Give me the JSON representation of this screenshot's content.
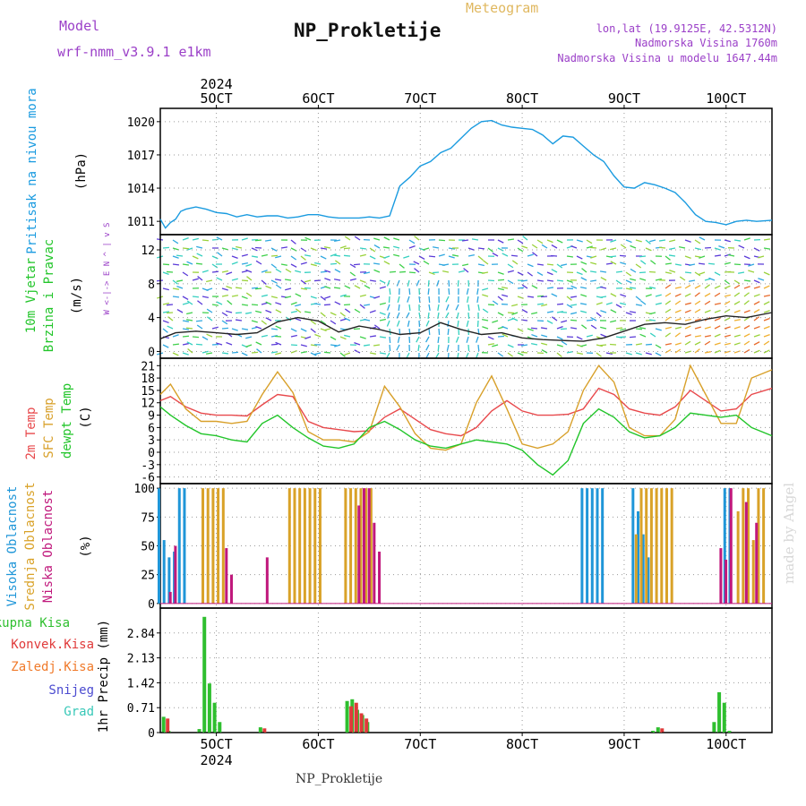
{
  "header": {
    "model_label": "Model",
    "model_name": "wrf-nmm_v3.9.1 e1km",
    "title": "NP_Prokletije",
    "product": "Meteogram",
    "lonlat": "lon,lat (19.9125E, 42.5312N)",
    "elevation": "Nadmorska Visina 1760m",
    "model_elevation": "Nadmorska Visina u modelu 1647.44m",
    "bottom_title": "NP_Prokletije",
    "watermark": "made by Angel"
  },
  "colors": {
    "pressure": "#1a9be0",
    "temp2m": "#e8494c",
    "sfc_temp": "#d8a02a",
    "dewpt": "#22c52a",
    "high_cloud": "#1f96d8",
    "mid_cloud": "#d9a228",
    "low_cloud": "#c0187c",
    "precip_total": "#2fbf2f",
    "precip_conv": "#e03a3a",
    "precip_frozen": "#f07a2a",
    "snow": "#4b4bd0",
    "hail": "#38c8b8",
    "model_text": "#9b40c8",
    "grid": "#9a9a9a"
  },
  "chart_data": {
    "time_axis": {
      "top_ticks": [
        "5OCT",
        "6OCT",
        "7OCT",
        "8OCT",
        "9OCT",
        "10OCT"
      ],
      "top_year": "2024",
      "bottom_ticks": [
        "5OCT",
        "6OCT",
        "7OCT",
        "8OCT",
        "9OCT",
        "10OCT"
      ],
      "bottom_year": "2024",
      "range_days": [
        4.45,
        10.45
      ]
    },
    "panels": [
      {
        "id": "pressure",
        "type": "line",
        "labels": [
          "Pritisak na nivou mora"
        ],
        "unit": "(hPa)",
        "yticks": [
          "1011",
          "1014",
          "1017",
          "1020"
        ],
        "ylim": [
          1009.8,
          1021.2
        ],
        "series": [
          {
            "name": "Pritisak na nivou mora",
            "x": [
              4.45,
              4.5,
              4.55,
              4.6,
              4.65,
              4.7,
              4.8,
              4.9,
              5.0,
              5.1,
              5.2,
              5.3,
              5.4,
              5.5,
              5.6,
              5.7,
              5.8,
              5.9,
              6.0,
              6.1,
              6.2,
              6.3,
              6.4,
              6.5,
              6.6,
              6.7,
              6.8,
              6.9,
              7.0,
              7.1,
              7.2,
              7.3,
              7.4,
              7.5,
              7.6,
              7.7,
              7.8,
              7.9,
              8.0,
              8.1,
              8.2,
              8.3,
              8.4,
              8.5,
              8.6,
              8.7,
              8.8,
              8.9,
              9.0,
              9.1,
              9.2,
              9.3,
              9.4,
              9.5,
              9.6,
              9.7,
              9.8,
              9.9,
              10.0,
              10.1,
              10.2,
              10.3,
              10.45
            ],
            "values": [
              1011.2,
              1010.4,
              1010.9,
              1011.2,
              1011.9,
              1012.1,
              1012.3,
              1012.1,
              1011.8,
              1011.7,
              1011.4,
              1011.6,
              1011.4,
              1011.5,
              1011.5,
              1011.3,
              1011.4,
              1011.6,
              1011.6,
              1011.4,
              1011.3,
              1011.3,
              1011.3,
              1011.4,
              1011.3,
              1011.5,
              1014.2,
              1015.0,
              1016.0,
              1016.4,
              1017.2,
              1017.6,
              1018.5,
              1019.4,
              1020.0,
              1020.1,
              1019.7,
              1019.5,
              1019.4,
              1019.3,
              1018.8,
              1018.0,
              1018.7,
              1018.6,
              1017.8,
              1017.0,
              1016.4,
              1015.1,
              1014.1,
              1014.0,
              1014.5,
              1014.3,
              1014.0,
              1013.6,
              1012.7,
              1011.6,
              1011.0,
              1010.9,
              1010.7,
              1011.0,
              1011.1,
              1011.0,
              1011.1
            ]
          }
        ]
      },
      {
        "id": "wind",
        "type": "line",
        "labels": [
          "10m Vjetar",
          "Brzina i Pravac"
        ],
        "unit": "(m/s)",
        "compass": "W <-|-> E  N ^ | v S",
        "yticks": [
          "0",
          "4",
          "8",
          "12"
        ],
        "ylim": [
          -0.8,
          13.8
        ],
        "series": [
          {
            "name": "Brzina",
            "x": [
              4.45,
              4.6,
              4.8,
              5.0,
              5.2,
              5.4,
              5.6,
              5.8,
              6.0,
              6.2,
              6.4,
              6.6,
              6.8,
              7.0,
              7.2,
              7.4,
              7.6,
              7.8,
              8.0,
              8.2,
              8.4,
              8.6,
              8.8,
              9.0,
              9.2,
              9.4,
              9.6,
              9.8,
              10.0,
              10.2,
              10.45
            ],
            "values": [
              1.5,
              2.2,
              2.4,
              2.2,
              2.0,
              2.2,
              3.5,
              4.0,
              3.6,
              2.3,
              3.0,
              2.6,
              2.0,
              2.2,
              3.4,
              2.6,
              2.0,
              2.2,
              1.6,
              1.4,
              1.3,
              1.2,
              1.6,
              2.4,
              3.2,
              3.4,
              3.2,
              3.8,
              4.2,
              4.0,
              4.6
            ]
          }
        ]
      },
      {
        "id": "temperature",
        "type": "line",
        "labels": [
          "2m Temp",
          "SFC Temp",
          "dewpt Temp"
        ],
        "unit": "(C)",
        "yticks": [
          "-6",
          "-3",
          "0",
          "3",
          "6",
          "9",
          "12",
          "15",
          "18",
          "21"
        ],
        "ylim": [
          -7.6,
          22.8
        ],
        "series": [
          {
            "name": "2m Temp",
            "x": [
              4.45,
              4.55,
              4.7,
              4.85,
              5.0,
              5.15,
              5.3,
              5.45,
              5.6,
              5.75,
              5.9,
              6.05,
              6.2,
              6.35,
              6.5,
              6.65,
              6.8,
              6.95,
              7.1,
              7.25,
              7.4,
              7.55,
              7.7,
              7.85,
              8.0,
              8.15,
              8.3,
              8.45,
              8.6,
              8.75,
              8.9,
              9.05,
              9.2,
              9.35,
              9.5,
              9.65,
              9.8,
              9.95,
              10.1,
              10.25,
              10.45
            ],
            "values": [
              12.5,
              13.5,
              11.0,
              9.5,
              9.0,
              9.0,
              8.8,
              11.5,
              14.0,
              13.5,
              7.5,
              6.0,
              5.5,
              5.0,
              5.2,
              8.5,
              10.5,
              8.0,
              5.5,
              4.5,
              4.0,
              6.0,
              10.0,
              12.5,
              10.0,
              9.0,
              9.0,
              9.2,
              10.5,
              15.5,
              14.0,
              10.5,
              9.5,
              9.0,
              11.0,
              15.0,
              12.5,
              10.0,
              10.5,
              14.0,
              15.5
            ]
          },
          {
            "name": "SFC Temp",
            "x": [
              4.45,
              4.55,
              4.7,
              4.85,
              5.0,
              5.15,
              5.3,
              5.45,
              5.6,
              5.75,
              5.9,
              6.05,
              6.2,
              6.35,
              6.5,
              6.65,
              6.8,
              6.95,
              7.1,
              7.25,
              7.4,
              7.55,
              7.7,
              7.85,
              8.0,
              8.15,
              8.3,
              8.45,
              8.6,
              8.75,
              8.9,
              9.05,
              9.2,
              9.35,
              9.5,
              9.65,
              9.8,
              9.95,
              10.1,
              10.25,
              10.45
            ],
            "values": [
              14.0,
              16.5,
              10.5,
              7.5,
              7.5,
              7.0,
              7.5,
              14.0,
              19.5,
              14.5,
              5.0,
              3.0,
              3.0,
              2.5,
              5.0,
              16.0,
              11.0,
              4.5,
              1.0,
              0.5,
              2.0,
              12.0,
              18.5,
              10.5,
              2.0,
              1.0,
              2.0,
              5.0,
              15.0,
              21.0,
              17.0,
              6.0,
              4.0,
              4.0,
              8.0,
              21.0,
              14.0,
              7.0,
              7.0,
              18.0,
              20.0
            ]
          },
          {
            "name": "dewpt Temp",
            "x": [
              4.45,
              4.55,
              4.7,
              4.85,
              5.0,
              5.15,
              5.3,
              5.45,
              5.6,
              5.75,
              5.9,
              6.05,
              6.2,
              6.35,
              6.5,
              6.65,
              6.8,
              6.95,
              7.1,
              7.25,
              7.4,
              7.55,
              7.7,
              7.85,
              8.0,
              8.15,
              8.3,
              8.45,
              8.6,
              8.75,
              8.9,
              9.05,
              9.2,
              9.35,
              9.5,
              9.65,
              9.8,
              9.95,
              10.1,
              10.25,
              10.45
            ],
            "values": [
              11.0,
              9.0,
              6.5,
              4.5,
              4.0,
              3.0,
              2.5,
              7.0,
              9.0,
              6.0,
              3.5,
              1.5,
              1.0,
              2.0,
              6.0,
              7.5,
              5.5,
              3.0,
              1.5,
              1.0,
              2.0,
              3.0,
              2.5,
              2.0,
              0.5,
              -3.0,
              -5.5,
              -2.0,
              7.0,
              10.5,
              8.5,
              5.0,
              3.5,
              4.0,
              6.0,
              9.5,
              9.0,
              8.5,
              9.0,
              6.0,
              4.0
            ]
          }
        ]
      },
      {
        "id": "cloud",
        "type": "bar",
        "labels": [
          "Visoka Oblacnost",
          "Srednja Oblacnost",
          "Niska Oblacnost"
        ],
        "unit": "(%)",
        "yticks": [
          "0",
          "25",
          "50",
          "75",
          "100"
        ],
        "ylim": [
          -4,
          104
        ],
        "series": [
          {
            "name": "Visoka Oblacnost",
            "x": [
              4.45,
              4.5,
              4.55,
              4.6,
              4.65,
              4.7,
              8.6,
              8.65,
              8.7,
              8.75,
              8.8,
              9.1,
              9.15,
              9.2,
              9.25,
              10.0,
              10.05
            ],
            "values": [
              100,
              55,
              40,
              45,
              100,
              100,
              100,
              100,
              100,
              100,
              100,
              100,
              80,
              60,
              40,
              100,
              100
            ]
          },
          {
            "name": "Srednja Oblacnost",
            "x": [
              4.85,
              4.9,
              4.95,
              5.0,
              5.05,
              5.7,
              5.75,
              5.8,
              5.85,
              5.9,
              5.95,
              6.0,
              6.25,
              6.3,
              6.35,
              6.4,
              6.45,
              6.5,
              9.1,
              9.15,
              9.2,
              9.25,
              9.3,
              9.35,
              9.4,
              9.45,
              10.1,
              10.15,
              10.2,
              10.25,
              10.3,
              10.35
            ],
            "values": [
              100,
              100,
              100,
              100,
              100,
              100,
              100,
              100,
              100,
              100,
              100,
              100,
              100,
              100,
              100,
              100,
              100,
              100,
              60,
              100,
              100,
              100,
              100,
              100,
              100,
              100,
              80,
              100,
              100,
              55,
              100,
              100
            ]
          },
          {
            "name": "Niska Oblacnost",
            "x": [
              4.5,
              4.55,
              5.05,
              5.1,
              5.45,
              6.35,
              6.4,
              6.45,
              6.5,
              6.55,
              9.9,
              9.95,
              10.0,
              10.15,
              10.25
            ],
            "values": [
              10,
              50,
              48,
              25,
              40,
              85,
              100,
              100,
              70,
              45,
              48,
              38,
              100,
              88,
              70
            ]
          }
        ]
      },
      {
        "id": "precip",
        "type": "bar",
        "labels": [
          "Ukupna Kisa",
          "Konvek.Kisa",
          "Zaledj.Kisa",
          "Snijeg",
          "Grad"
        ],
        "unit": "1hr Precip (mm)",
        "yticks": [
          "0",
          "0.71",
          "1.42",
          "2.13",
          "2.84"
        ],
        "ylim": [
          0,
          3.55
        ],
        "series": [
          {
            "name": "Ukupna Kisa",
            "x": [
              4.5,
              4.55,
              4.85,
              4.9,
              4.95,
              5.0,
              5.05,
              5.45,
              6.3,
              6.35,
              6.4,
              6.45,
              6.5,
              9.3,
              9.35,
              9.9,
              9.95,
              10.0,
              10.05
            ],
            "values": [
              0.45,
              0.05,
              0.1,
              3.3,
              1.4,
              0.85,
              0.3,
              0.15,
              0.9,
              0.95,
              0.65,
              0.5,
              0.3,
              0.05,
              0.15,
              0.3,
              1.15,
              0.85,
              0.05
            ]
          },
          {
            "name": "Konvek.Kisa",
            "x": [
              4.5,
              5.45,
              6.3,
              6.35,
              6.4,
              6.45,
              9.35
            ],
            "values": [
              0.4,
              0.12,
              0.75,
              0.85,
              0.55,
              0.4,
              0.12
            ]
          }
        ]
      }
    ]
  }
}
